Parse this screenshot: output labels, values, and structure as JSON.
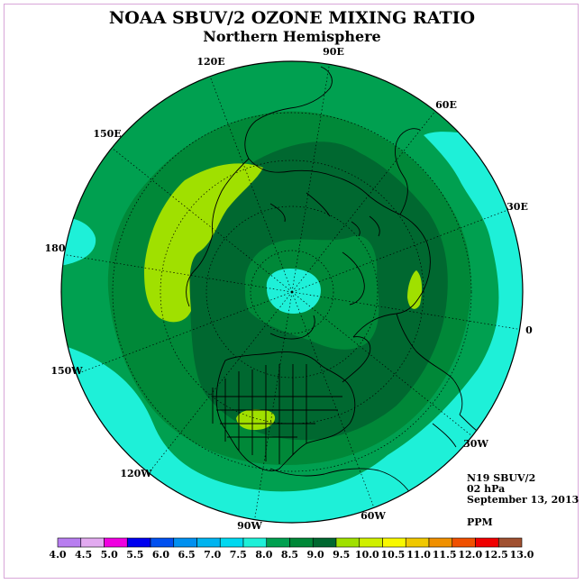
{
  "title": "NOAA SBUV/2 OZONE MIXING RATIO",
  "subtitle": "Northern Hemisphere",
  "longitude_labels": [
    {
      "id": "lon-90e",
      "text": "90E"
    },
    {
      "id": "lon-60e",
      "text": "60E"
    },
    {
      "id": "lon-30e",
      "text": "30E"
    },
    {
      "id": "lon-0",
      "text": "0"
    },
    {
      "id": "lon-30w",
      "text": "30W"
    },
    {
      "id": "lon-60w",
      "text": "60W"
    },
    {
      "id": "lon-90w",
      "text": "90W"
    },
    {
      "id": "lon-120w",
      "text": "120W"
    },
    {
      "id": "lon-150w",
      "text": "150W"
    },
    {
      "id": "lon-180",
      "text": "180"
    },
    {
      "id": "lon-150e",
      "text": "150E"
    },
    {
      "id": "lon-120e",
      "text": "120E"
    }
  ],
  "info": {
    "satellite": "N19 SBUV/2",
    "level": "02 hPa",
    "date": "September 13, 2013",
    "units": "PPM"
  },
  "colorbar": {
    "ticks": [
      "4.0",
      "4.5",
      "5.0",
      "5.5",
      "6.0",
      "6.5",
      "7.0",
      "7.5",
      "8.0",
      "8.5",
      "9.0",
      "9.5",
      "10.0",
      "10.5",
      "11.0",
      "11.5",
      "12.0",
      "12.5",
      "13.0"
    ],
    "colors": [
      "#b87ef0",
      "#e2aaf0",
      "#f000e0",
      "#0000f0",
      "#0050f0",
      "#0090f0",
      "#00b4f0",
      "#00d8f0",
      "#1ef0d8",
      "#00a050",
      "#008838",
      "#006830",
      "#a0e000",
      "#d0f000",
      "#f8f800",
      "#f0c800",
      "#f09000",
      "#f05000",
      "#f00000",
      "#a05030"
    ]
  },
  "colors": {
    "band_7_5_8_0": "#1ef0d8",
    "band_8_0_8_5": "#00a050",
    "band_8_5_9_0": "#008838",
    "band_9_0_9_5": "#006830",
    "band_9_5_10_0": "#a0e000",
    "coastline": "#000000"
  }
}
